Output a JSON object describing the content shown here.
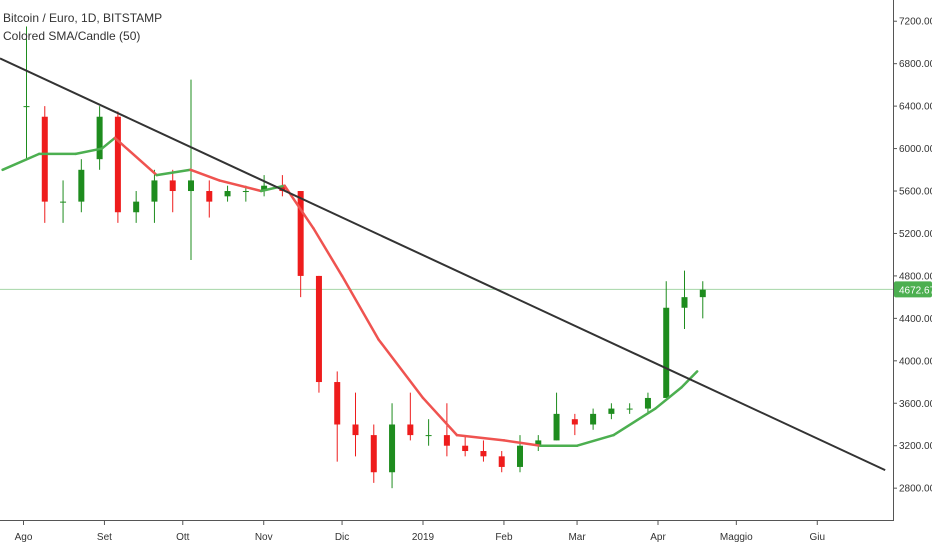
{
  "legend": {
    "title": "Bitcoin / Euro, 1D, BITSTAMP",
    "indicator": "Colored SMA/Candle (50)"
  },
  "chart_data": {
    "type": "candlestick",
    "symbol": "Bitcoin / Euro, 1D, BITSTAMP",
    "indicator": "Colored SMA/Candle (50)",
    "y_ticks": [
      "7200.00",
      "6800.00",
      "6400.00",
      "6000.00",
      "5600.00",
      "5200.00",
      "4800.00",
      "4400.00",
      "4000.00",
      "3600.00",
      "3200.00",
      "2800.00"
    ],
    "x_ticks": [
      "Ago",
      "Set",
      "Ott",
      "Nov",
      "Dic",
      "2019",
      "Feb",
      "Mar",
      "Apr",
      "Maggio",
      "Giu"
    ],
    "ylim": [
      2500,
      7400
    ],
    "x_range_days": [
      -9,
      333
    ],
    "last_price": "4672.67",
    "last_price_value": 4672.67,
    "colors": {
      "up": "#1e8c1e",
      "down": "#ee1c1c",
      "sma_up": "#4caf50",
      "sma_down": "#ef5350",
      "trendline": "#333333",
      "price_tag": "#4caf50",
      "price_line": "#a5d6a7"
    },
    "candles_weekly_approx": [
      {
        "week": "2018-08-01",
        "open": 6400,
        "close": 6400,
        "high": 7150,
        "low": 5900
      },
      {
        "week": "2018-08-08",
        "open": 6300,
        "close": 5500,
        "high": 6400,
        "low": 5300
      },
      {
        "week": "2018-08-15",
        "open": 5500,
        "close": 5500,
        "high": 5700,
        "low": 5300
      },
      {
        "week": "2018-08-22",
        "open": 5500,
        "close": 5800,
        "high": 5900,
        "low": 5400
      },
      {
        "week": "2018-08-29",
        "open": 5900,
        "close": 6300,
        "high": 6400,
        "low": 5800
      },
      {
        "week": "2018-09-05",
        "open": 6300,
        "close": 5400,
        "high": 6350,
        "low": 5300
      },
      {
        "week": "2018-09-12",
        "open": 5400,
        "close": 5500,
        "high": 5600,
        "low": 5300
      },
      {
        "week": "2018-09-19",
        "open": 5500,
        "close": 5700,
        "high": 5800,
        "low": 5300
      },
      {
        "week": "2018-09-26",
        "open": 5700,
        "close": 5600,
        "high": 5800,
        "low": 5400
      },
      {
        "week": "2018-10-03",
        "open": 5600,
        "close": 5700,
        "high": 6650,
        "low": 4950
      },
      {
        "week": "2018-10-10",
        "open": 5600,
        "close": 5500,
        "high": 5700,
        "low": 5350
      },
      {
        "week": "2018-10-17",
        "open": 5550,
        "close": 5600,
        "high": 5650,
        "low": 5500
      },
      {
        "week": "2018-10-24",
        "open": 5600,
        "close": 5600,
        "high": 5650,
        "low": 5500
      },
      {
        "week": "2018-10-31",
        "open": 5600,
        "close": 5650,
        "high": 5750,
        "low": 5550
      },
      {
        "week": "2018-11-07",
        "open": 5650,
        "close": 5600,
        "high": 5750,
        "low": 5550
      },
      {
        "week": "2018-11-14",
        "open": 5600,
        "close": 4800,
        "high": 5600,
        "low": 4600
      },
      {
        "week": "2018-11-21",
        "open": 4800,
        "close": 3800,
        "high": 4800,
        "low": 3700
      },
      {
        "week": "2018-11-28",
        "open": 3800,
        "close": 3400,
        "high": 3900,
        "low": 3050
      },
      {
        "week": "2018-12-05",
        "open": 3400,
        "close": 3300,
        "high": 3700,
        "low": 3100
      },
      {
        "week": "2018-12-12",
        "open": 3300,
        "close": 2950,
        "high": 3400,
        "low": 2850
      },
      {
        "week": "2018-12-19",
        "open": 2950,
        "close": 3400,
        "high": 3600,
        "low": 2800
      },
      {
        "week": "2018-12-26",
        "open": 3400,
        "close": 3300,
        "high": 3700,
        "low": 3250
      },
      {
        "week": "2019-01-02",
        "open": 3300,
        "close": 3300,
        "high": 3450,
        "low": 3200
      },
      {
        "week": "2019-01-09",
        "open": 3300,
        "close": 3200,
        "high": 3600,
        "low": 3100
      },
      {
        "week": "2019-01-16",
        "open": 3200,
        "close": 3150,
        "high": 3300,
        "low": 3100
      },
      {
        "week": "2019-01-23",
        "open": 3150,
        "close": 3100,
        "high": 3250,
        "low": 3050
      },
      {
        "week": "2019-01-30",
        "open": 3100,
        "close": 3000,
        "high": 3150,
        "low": 2950
      },
      {
        "week": "2019-02-06",
        "open": 3000,
        "close": 3200,
        "high": 3300,
        "low": 2950
      },
      {
        "week": "2019-02-13",
        "open": 3200,
        "close": 3250,
        "high": 3300,
        "low": 3150
      },
      {
        "week": "2019-02-20",
        "open": 3250,
        "close": 3500,
        "high": 3700,
        "low": 3250
      },
      {
        "week": "2019-02-27",
        "open": 3450,
        "close": 3400,
        "high": 3500,
        "low": 3300
      },
      {
        "week": "2019-03-06",
        "open": 3400,
        "close": 3500,
        "high": 3550,
        "low": 3350
      },
      {
        "week": "2019-03-13",
        "open": 3500,
        "close": 3550,
        "high": 3600,
        "low": 3450
      },
      {
        "week": "2019-03-20",
        "open": 3550,
        "close": 3550,
        "high": 3600,
        "low": 3500
      },
      {
        "week": "2019-03-27",
        "open": 3550,
        "close": 3650,
        "high": 3700,
        "low": 3500
      },
      {
        "week": "2019-04-03",
        "open": 3650,
        "close": 4500,
        "high": 4750,
        "low": 3700
      },
      {
        "week": "2019-04-10",
        "open": 4500,
        "close": 4600,
        "high": 4850,
        "low": 4300
      },
      {
        "week": "2019-04-17",
        "open": 4600,
        "close": 4670,
        "high": 4750,
        "low": 4400
      }
    ],
    "sma_50_approx": [
      {
        "date": "2018-07-24",
        "value": 5800
      },
      {
        "date": "2018-08-07",
        "value": 5950
      },
      {
        "date": "2018-08-21",
        "value": 5950
      },
      {
        "date": "2018-08-31",
        "value": 6000
      },
      {
        "date": "2018-09-05",
        "value": 6100
      },
      {
        "date": "2018-09-21",
        "value": 5750
      },
      {
        "date": "2018-10-04",
        "value": 5800
      },
      {
        "date": "2018-10-15",
        "value": 5700
      },
      {
        "date": "2018-10-31",
        "value": 5600
      },
      {
        "date": "2018-11-09",
        "value": 5650
      },
      {
        "date": "2018-11-20",
        "value": 5250
      },
      {
        "date": "2018-12-01",
        "value": 4800
      },
      {
        "date": "2018-12-15",
        "value": 4200
      },
      {
        "date": "2019-01-01",
        "value": 3650
      },
      {
        "date": "2019-01-14",
        "value": 3300
      },
      {
        "date": "2019-02-01",
        "value": 3250
      },
      {
        "date": "2019-02-15",
        "value": 3200
      },
      {
        "date": "2019-03-01",
        "value": 3200
      },
      {
        "date": "2019-03-15",
        "value": 3300
      },
      {
        "date": "2019-03-31",
        "value": 3550
      },
      {
        "date": "2019-04-10",
        "value": 3750
      },
      {
        "date": "2019-04-16",
        "value": 3900
      }
    ],
    "trendline": [
      {
        "date": "2018-07-23",
        "value": 6850
      },
      {
        "date": "2019-06-27",
        "value": 2970
      }
    ]
  }
}
